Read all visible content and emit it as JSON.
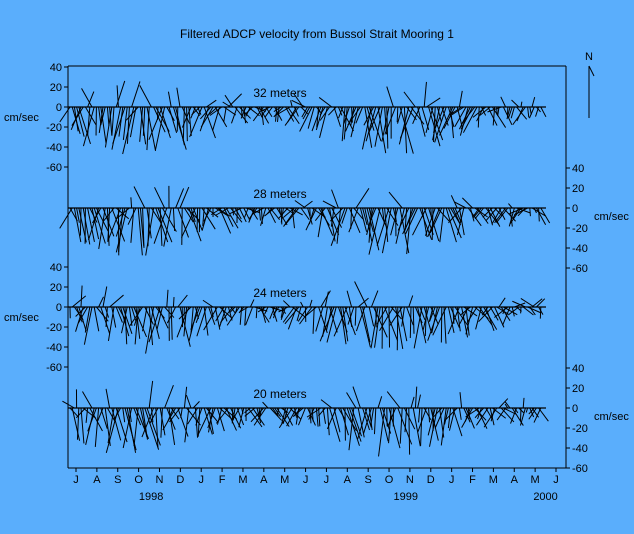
{
  "chart_data": {
    "type": "stick_plot",
    "title": "Filtered ADCP velocity from Bussol Strait Mooring 1",
    "north_label": "N",
    "unit_label": "cm/sec",
    "yticks": [
      40,
      20,
      0,
      -20,
      -40,
      -60
    ],
    "ylim": [
      -60,
      40
    ],
    "x_month_labels": [
      "J",
      "A",
      "S",
      "O",
      "N",
      "D",
      "J",
      "F",
      "M",
      "A",
      "M",
      "J",
      "J",
      "A",
      "S",
      "O",
      "N",
      "D",
      "J",
      "F",
      "M",
      "A",
      "M",
      "J"
    ],
    "x_year_labels": [
      "1998",
      "1999",
      "2000"
    ],
    "x_range": [
      "1998-07",
      "2000-06"
    ],
    "panels": [
      {
        "label": "32 meters",
        "axis_side": "left"
      },
      {
        "label": "28 meters",
        "axis_side": "right"
      },
      {
        "label": "24 meters",
        "axis_side": "left"
      },
      {
        "label": "20 meters",
        "axis_side": "right"
      }
    ]
  }
}
